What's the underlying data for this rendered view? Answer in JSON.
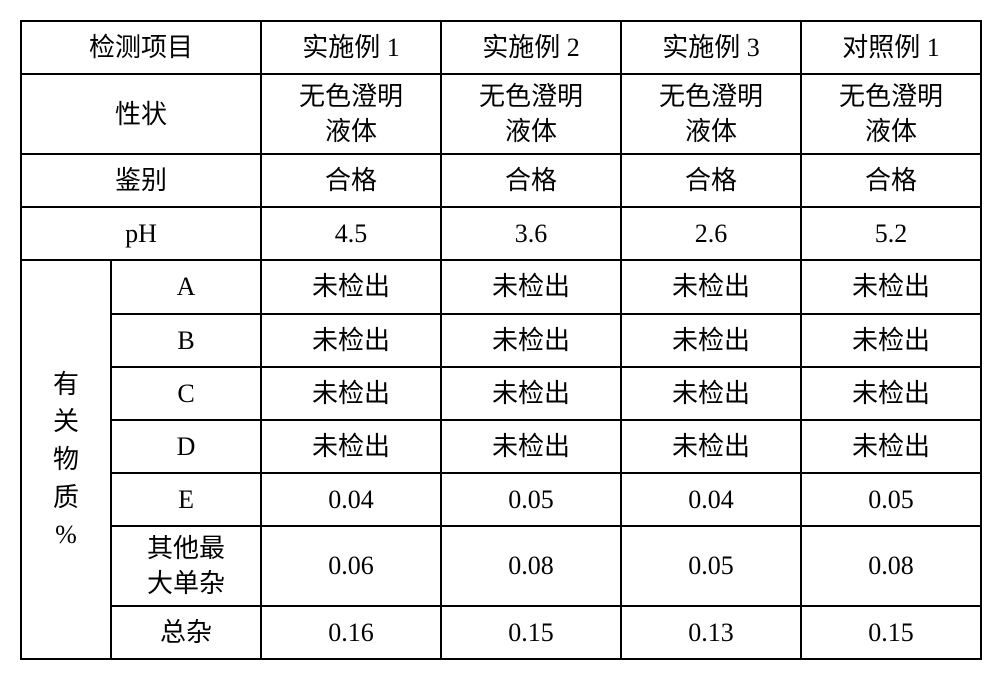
{
  "header": {
    "item": "检测项目",
    "ex1": "实施例 1",
    "ex2": "实施例 2",
    "ex3": "实施例 3",
    "ctrl1": "对照例 1"
  },
  "rows": {
    "appearance": {
      "label": "性状",
      "v1": "无色澄明\n液体",
      "v2": "无色澄明\n液体",
      "v3": "无色澄明\n液体",
      "v4": "无色澄明\n液体"
    },
    "identify": {
      "label": "鉴别",
      "v1": "合格",
      "v2": "合格",
      "v3": "合格",
      "v4": "合格"
    },
    "ph": {
      "label": "pH",
      "v1": "4.5",
      "v2": "3.6",
      "v3": "2.6",
      "v4": "5.2"
    }
  },
  "related": {
    "group_label": "有\n关\n物\n质\n%",
    "A": {
      "label": "A",
      "v1": "未检出",
      "v2": "未检出",
      "v3": "未检出",
      "v4": "未检出"
    },
    "B": {
      "label": "B",
      "v1": "未检出",
      "v2": "未检出",
      "v3": "未检出",
      "v4": "未检出"
    },
    "C": {
      "label": "C",
      "v1": "未检出",
      "v2": "未检出",
      "v3": "未检出",
      "v4": "未检出"
    },
    "D": {
      "label": "D",
      "v1": "未检出",
      "v2": "未检出",
      "v3": "未检出",
      "v4": "未检出"
    },
    "E": {
      "label": "E",
      "v1": "0.04",
      "v2": "0.05",
      "v3": "0.04",
      "v4": "0.05"
    },
    "other_max": {
      "label": "其他最\n大单杂",
      "v1": "0.06",
      "v2": "0.08",
      "v3": "0.05",
      "v4": "0.08"
    },
    "total": {
      "label": "总杂",
      "v1": "0.16",
      "v2": "0.15",
      "v3": "0.13",
      "v4": "0.15"
    }
  },
  "style": {
    "border_color": "#000000",
    "background": "#ffffff",
    "font_size_pt": 20
  }
}
